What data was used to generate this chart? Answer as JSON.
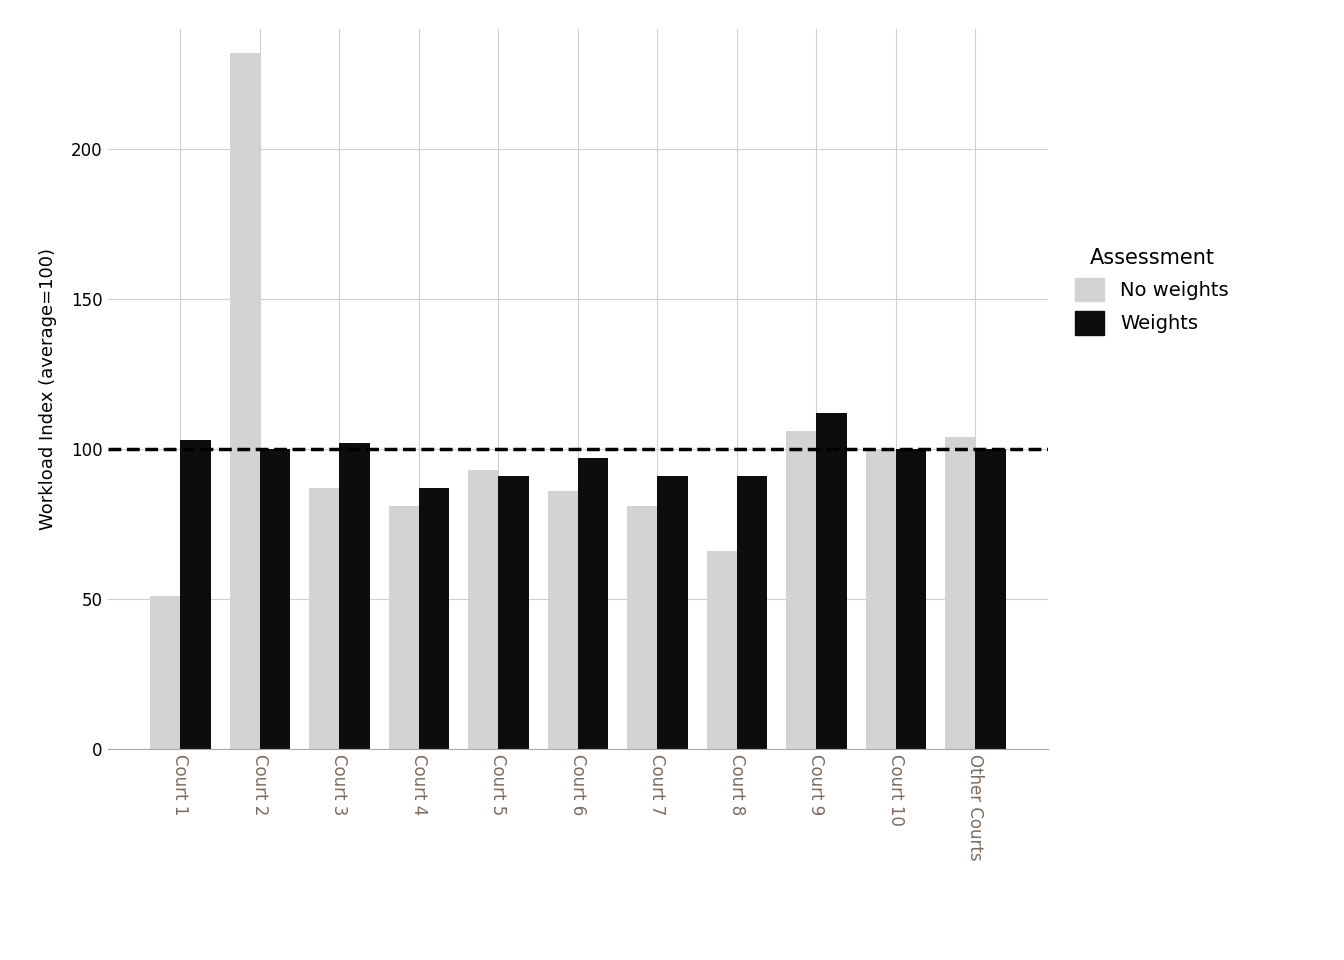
{
  "categories": [
    "Court 1",
    "Court 2",
    "Court 3",
    "Court 4",
    "Court 5",
    "Court 6",
    "Court 7",
    "Court 8",
    "Court 9",
    "Court 10",
    "Other Courts"
  ],
  "no_weights": [
    51,
    232,
    87,
    81,
    93,
    86,
    81,
    66,
    106,
    100,
    104
  ],
  "weights": [
    103,
    100,
    102,
    87,
    91,
    97,
    91,
    91,
    112,
    100,
    100
  ],
  "no_weights_color": "#d3d3d3",
  "weights_color": "#0d0d0d",
  "ylabel": "Workload Index (average=100)",
  "legend_title": "Assessment",
  "legend_labels": [
    "No weights",
    "Weights"
  ],
  "dashed_line_y": 100,
  "ylim": [
    0,
    240
  ],
  "yticks": [
    0,
    50,
    100,
    150,
    200
  ],
  "background_color": "#ffffff",
  "grid_color": "#d0d0d0",
  "bar_width": 0.38,
  "tick_label_color": "#7d6b5e",
  "axis_label_fontsize": 13,
  "tick_fontsize": 12,
  "legend_fontsize": 14,
  "legend_title_fontsize": 15
}
